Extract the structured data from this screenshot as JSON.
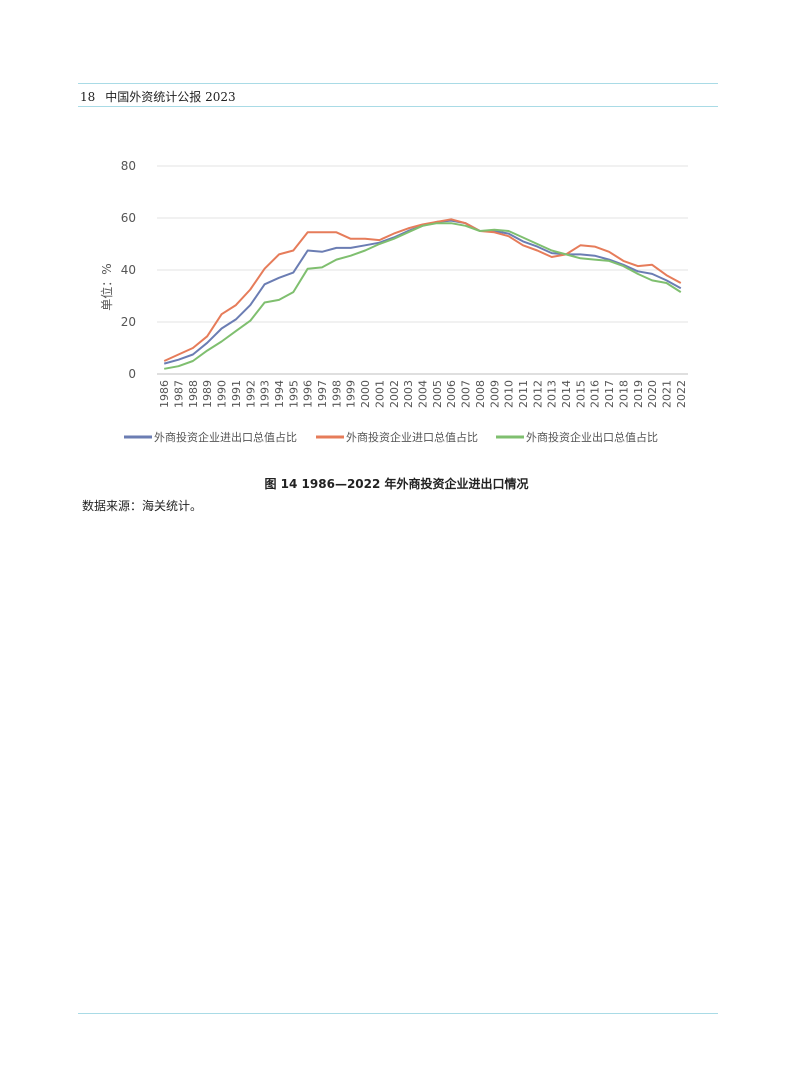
{
  "header": {
    "page_number": "18",
    "publication": "中国外资统计公报 2023"
  },
  "chart_data": {
    "type": "line",
    "ylabel": "单位：%",
    "ylim": [
      0,
      80
    ],
    "yticks": [
      0,
      20,
      40,
      60,
      80
    ],
    "grid": true,
    "legend_position": "bottom",
    "x": [
      "1986",
      "1987",
      "1988",
      "1989",
      "1990",
      "1991",
      "1992",
      "1993",
      "1994",
      "1995",
      "1996",
      "1997",
      "1998",
      "1999",
      "2000",
      "2001",
      "2002",
      "2003",
      "2004",
      "2005",
      "2006",
      "2007",
      "2008",
      "2009",
      "2010",
      "2011",
      "2012",
      "2013",
      "2014",
      "2015",
      "2016",
      "2017",
      "2018",
      "2019",
      "2020",
      "2021",
      "2022"
    ],
    "series": [
      {
        "name": "外商投资企业进出口总值占比",
        "color": "#6b7db3",
        "values": [
          4,
          5.5,
          7.5,
          12,
          17.5,
          21,
          26.5,
          34.5,
          37,
          39,
          47.5,
          47,
          48.5,
          48.5,
          49.5,
          50.5,
          52.5,
          55,
          57,
          58.5,
          59,
          58,
          55,
          55,
          54,
          51,
          49,
          46.5,
          46,
          46,
          45.5,
          44,
          42,
          39.5,
          38.5,
          36,
          33
        ]
      },
      {
        "name": "外商投资企业进口总值占比",
        "color": "#e67c5a",
        "values": [
          5,
          7.5,
          10,
          14.5,
          23,
          26.5,
          32.5,
          40.5,
          46,
          47.5,
          54.5,
          54.5,
          54.5,
          52,
          52,
          51.5,
          54,
          56,
          57.5,
          58.5,
          59.5,
          58,
          55,
          54.5,
          53,
          49.5,
          47.5,
          45,
          46,
          49.5,
          49,
          47,
          43.5,
          41.5,
          42,
          38,
          35
        ]
      },
      {
        "name": "外商投资企业出口总值占比",
        "color": "#7fbf6f",
        "values": [
          2,
          3,
          5,
          9,
          12.5,
          16.5,
          20.5,
          27.5,
          28.5,
          31.5,
          40.5,
          41,
          44,
          45.5,
          47.5,
          50,
          52,
          54.5,
          57,
          58,
          58,
          57,
          55,
          55.5,
          55,
          52.5,
          50,
          47.5,
          46,
          44.5,
          44,
          43.5,
          41.5,
          38.5,
          36,
          35,
          31.5
        ]
      }
    ]
  },
  "caption": "图 14    1986—2022 年外商投资企业进出口情况",
  "source": "数据来源：海关统计。"
}
